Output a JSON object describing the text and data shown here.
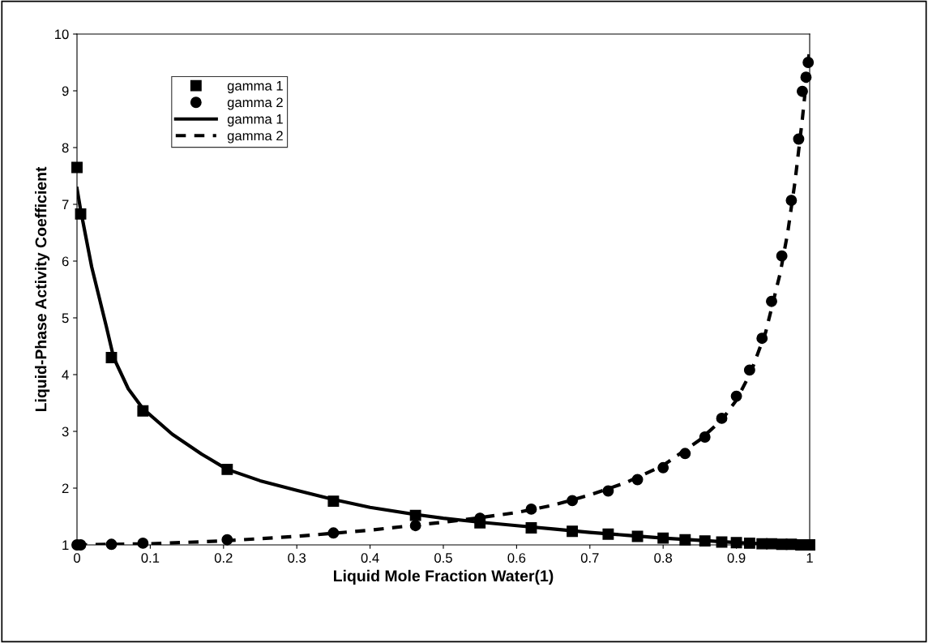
{
  "chart_data": {
    "type": "scatter",
    "xlabel": "Liquid Mole Fraction Water(1)",
    "ylabel": "Liquid-Phase Activity Coefficient",
    "xlim": [
      0,
      1
    ],
    "ylim": [
      1,
      10
    ],
    "xticks": [
      0,
      0.1,
      0.2,
      0.3,
      0.4,
      0.5,
      0.6,
      0.7,
      0.8,
      0.9,
      1
    ],
    "yticks": [
      1,
      2,
      3,
      4,
      5,
      6,
      7,
      8,
      9,
      10
    ],
    "grid": false,
    "legend": "top left",
    "series": [
      {
        "name": "gamma 1",
        "marker": "square",
        "color": "#000000",
        "x": [
          0,
          0.005,
          0.047,
          0.09,
          0.205,
          0.35,
          0.462,
          0.55,
          0.62,
          0.676,
          0.725,
          0.765,
          0.8,
          0.83,
          0.857,
          0.88,
          0.9,
          0.918,
          0.935,
          0.948,
          0.962,
          0.975,
          0.988,
          1.0
        ],
        "values": [
          7.65,
          6.83,
          4.3,
          3.36,
          2.33,
          1.77,
          1.52,
          1.39,
          1.3,
          1.24,
          1.19,
          1.15,
          1.12,
          1.09,
          1.07,
          1.05,
          1.04,
          1.03,
          1.02,
          1.02,
          1.01,
          1.01,
          1.0,
          1.0
        ]
      },
      {
        "name": "gamma 2",
        "marker": "circle",
        "color": "#000000",
        "x": [
          0,
          0.005,
          0.047,
          0.09,
          0.205,
          0.35,
          0.462,
          0.55,
          0.62,
          0.676,
          0.725,
          0.765,
          0.8,
          0.83,
          0.857,
          0.88,
          0.9,
          0.918,
          0.935,
          0.948,
          0.962,
          0.975,
          0.985,
          0.99,
          0.995,
          0.998
        ],
        "values": [
          1.0,
          1.0,
          1.01,
          1.03,
          1.09,
          1.21,
          1.34,
          1.47,
          1.63,
          1.78,
          1.95,
          2.15,
          2.36,
          2.61,
          2.9,
          3.23,
          3.62,
          4.08,
          4.64,
          5.29,
          6.09,
          7.07,
          8.15,
          8.99,
          9.24,
          9.5
        ]
      },
      {
        "name": "gamma 1",
        "type": "line",
        "marker": "none",
        "line_style": "solid",
        "color": "#000000",
        "x": [
          0,
          0.005,
          0.02,
          0.04,
          0.05,
          0.07,
          0.09,
          0.13,
          0.17,
          0.205,
          0.25,
          0.3,
          0.35,
          0.4,
          0.46,
          0.5,
          0.55,
          0.6,
          0.65,
          0.7,
          0.75,
          0.8,
          0.85,
          0.9,
          0.95,
          1.0
        ],
        "values": [
          7.28,
          6.9,
          5.9,
          4.85,
          4.3,
          3.75,
          3.4,
          2.95,
          2.6,
          2.33,
          2.13,
          1.96,
          1.8,
          1.66,
          1.54,
          1.47,
          1.4,
          1.34,
          1.28,
          1.22,
          1.17,
          1.12,
          1.08,
          1.04,
          1.01,
          1.0
        ]
      },
      {
        "name": "gamma 2",
        "type": "line",
        "marker": "none",
        "line_style": "dashed",
        "color": "#000000",
        "x": [
          0,
          0.1,
          0.2,
          0.3,
          0.4,
          0.5,
          0.55,
          0.6,
          0.65,
          0.7,
          0.75,
          0.8,
          0.85,
          0.88,
          0.9,
          0.92,
          0.94,
          0.96,
          0.97,
          0.98,
          0.99,
          1.0
        ],
        "values": [
          1.0,
          1.02,
          1.07,
          1.15,
          1.26,
          1.4,
          1.48,
          1.57,
          1.7,
          1.88,
          2.1,
          2.4,
          2.85,
          3.2,
          3.55,
          4.05,
          4.75,
          5.8,
          6.5,
          7.4,
          8.5,
          9.75
        ]
      }
    ]
  }
}
